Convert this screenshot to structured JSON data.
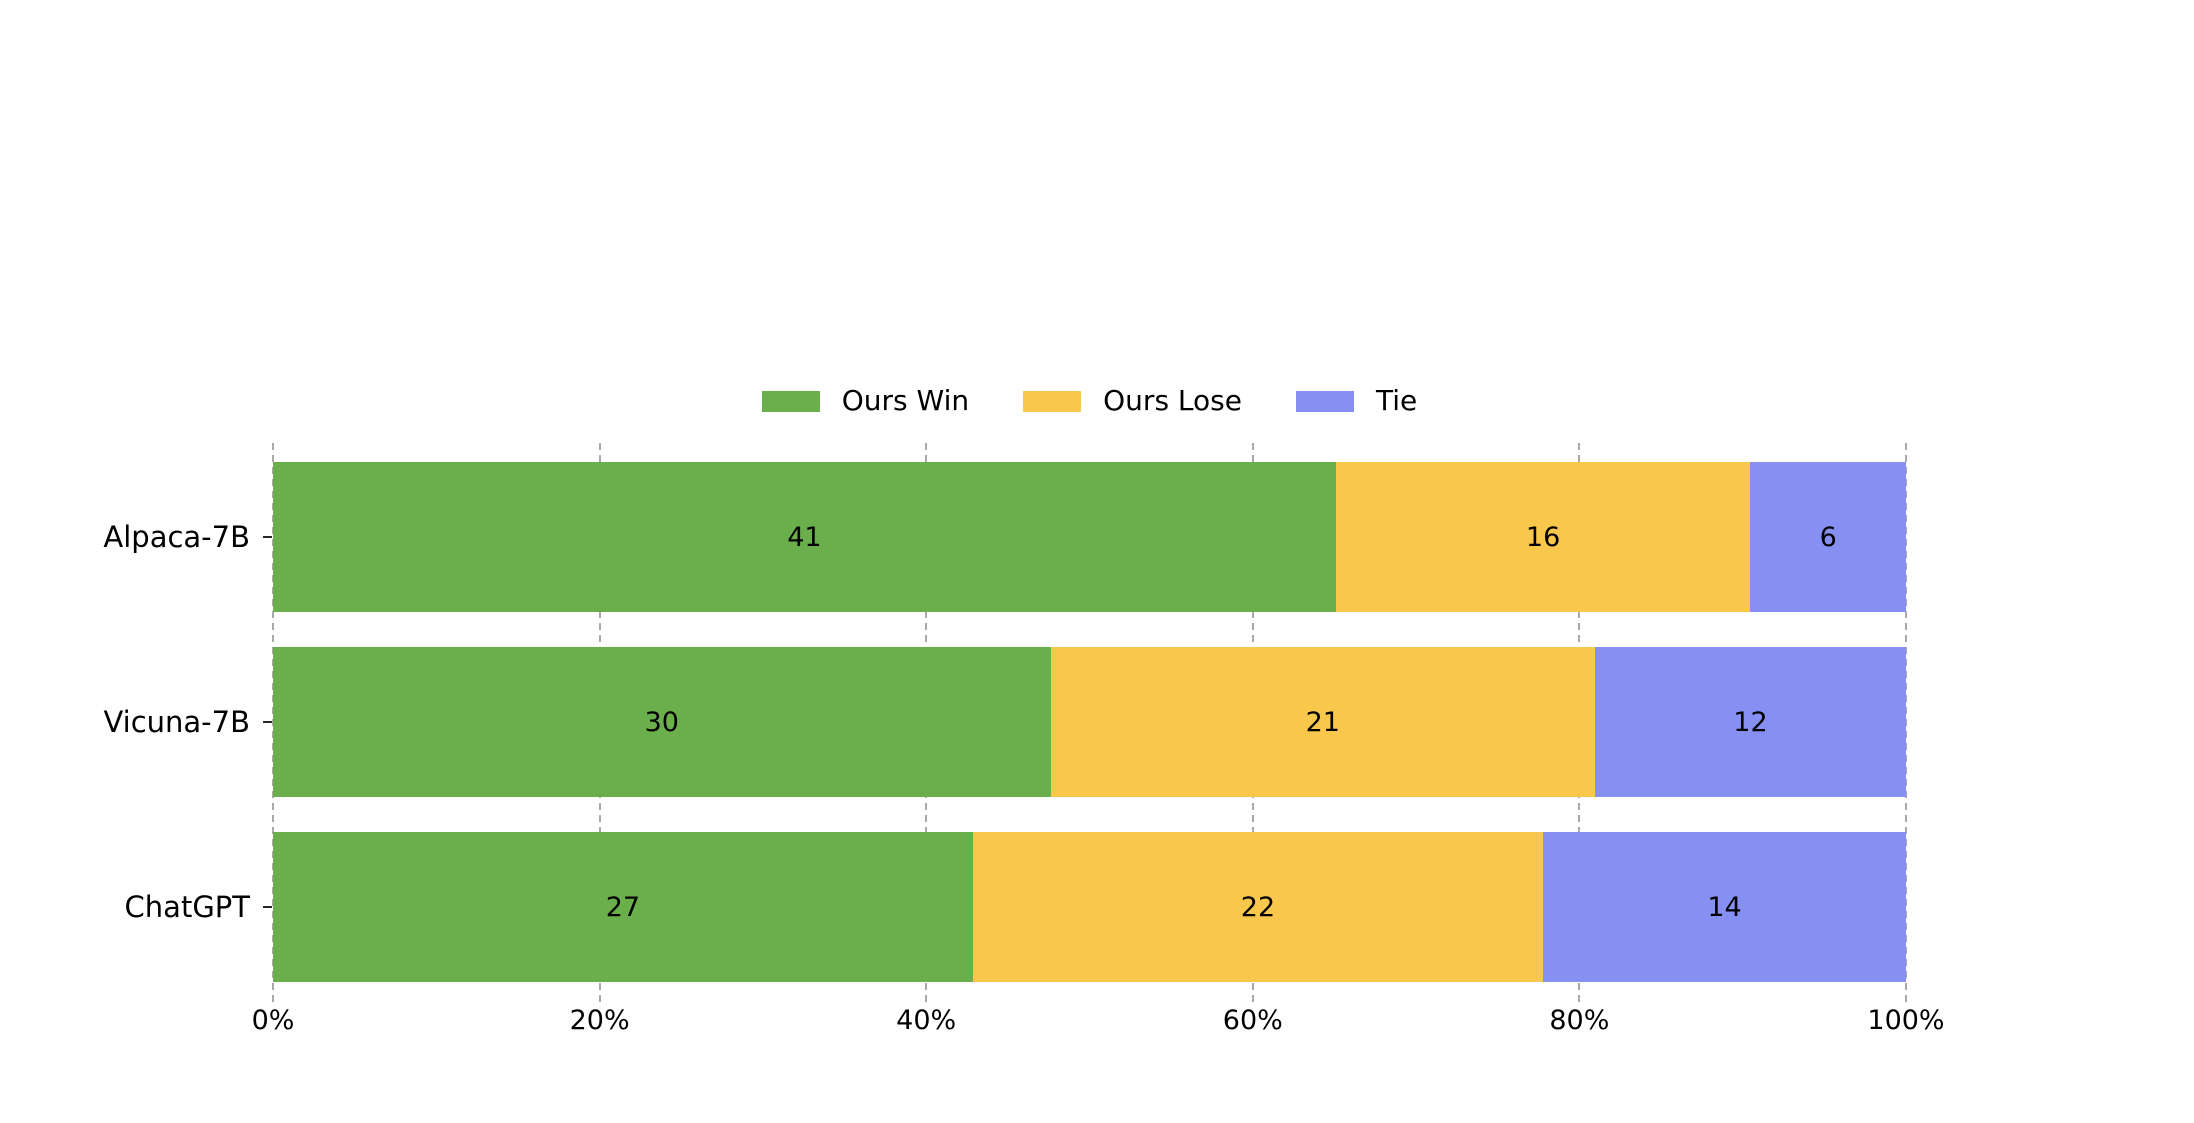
{
  "chart_data": {
    "type": "bar",
    "orientation": "horizontal",
    "stacked": true,
    "normalized_to_percent": true,
    "title": "",
    "xlabel": "",
    "ylabel": "",
    "categories": [
      "Alpaca-7B",
      "Vicuna-7B",
      "ChatGPT"
    ],
    "series": [
      {
        "name": "Ours Win",
        "color": "#6aaf4c",
        "values": [
          41,
          30,
          27
        ]
      },
      {
        "name": "Ours Lose",
        "color": "#f9c74c",
        "values": [
          16,
          21,
          22
        ]
      },
      {
        "name": "Tie",
        "color": "#8690f2",
        "values": [
          6,
          12,
          14
        ]
      }
    ],
    "row_totals": [
      63,
      63,
      63
    ],
    "x_tick_labels": [
      "0%",
      "20%",
      "40%",
      "60%",
      "80%",
      "100%"
    ],
    "xlim": [
      0,
      100
    ],
    "grid": "vertical-dashed",
    "gridline_color": "#a9a9a9",
    "legend_position": "top-center",
    "background_color": "#ffffff",
    "text_color": "#000000"
  }
}
